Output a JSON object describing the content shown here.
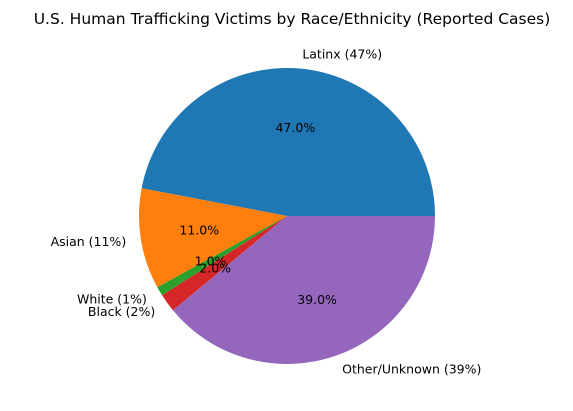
{
  "chart_data": {
    "type": "pie",
    "title": "U.S. Human Trafficking Victims by Race/Ethnicity (Reported Cases)",
    "slices": [
      {
        "label": "Latinx (47%)",
        "value": 47.0,
        "pct_label": "47.0%",
        "color": "#1f77b4"
      },
      {
        "label": "Asian (11%)",
        "value": 11.0,
        "pct_label": "11.0%",
        "color": "#ff7f0e"
      },
      {
        "label": "White (1%)",
        "value": 1.0,
        "pct_label": "1.0%",
        "color": "#2ca02c"
      },
      {
        "label": "Black (2%)",
        "value": 2.0,
        "pct_label": "2.0%",
        "color": "#d62728"
      },
      {
        "label": "Other/Unknown (39%)",
        "value": 39.0,
        "pct_label": "39.0%",
        "color": "#9467bd"
      }
    ],
    "start_angle_deg": 0,
    "direction": "counterclockwise",
    "legend": "none"
  }
}
